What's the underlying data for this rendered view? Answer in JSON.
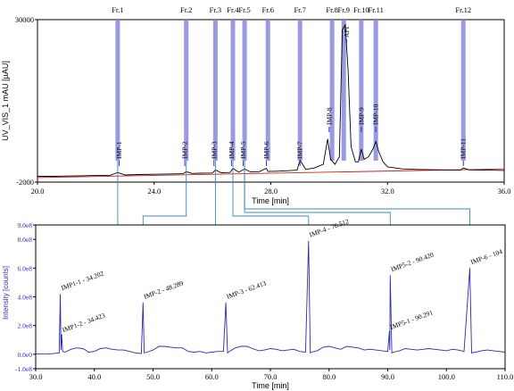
{
  "chart_data": [
    {
      "type": "line",
      "title": "",
      "xlabel": "Time [min]",
      "ylabel": "UV_VIS_1 mAU [µAU]",
      "xlim": [
        20.0,
        36.0
      ],
      "ylim": [
        -2000,
        30000
      ],
      "xticks": [
        "20.0",
        "24.0",
        "28.0",
        "32.0",
        "36.0"
      ],
      "yticks": [
        "30000",
        "-2000"
      ],
      "colors": {
        "trace": "#000000",
        "baseline": "#cc2222",
        "fraction": "#8888dd",
        "marker": "#2233cc"
      },
      "fractions": [
        {
          "label": "Fr.1",
          "x": 22.75
        },
        {
          "label": "Fr.2",
          "x": 25.1
        },
        {
          "label": "Fr.3",
          "x": 26.1
        },
        {
          "label": "Fr.4",
          "x": 26.7
        },
        {
          "label": "Fr.5",
          "x": 27.1
        },
        {
          "label": "Fr.6",
          "x": 27.9
        },
        {
          "label": "Fr.7",
          "x": 29.0
        },
        {
          "label": "Fr.8",
          "x": 30.1
        },
        {
          "label": "Fr.9",
          "x": 30.5
        },
        {
          "label": "Fr.10",
          "x": 31.1
        },
        {
          "label": "Fr.11",
          "x": 31.6
        },
        {
          "label": "Fr.12",
          "x": 34.6
        }
      ],
      "peak_labels": [
        {
          "label": "IMP-1",
          "x": 22.8
        },
        {
          "label": "IMP-2",
          "x": 25.05
        },
        {
          "label": "IMP-3",
          "x": 26.05
        },
        {
          "label": "IMP-4",
          "x": 26.65
        },
        {
          "label": "IMP-5",
          "x": 27.05
        },
        {
          "label": "IMP-6",
          "x": 27.85
        },
        {
          "label": "IMP-7",
          "x": 29.0
        },
        {
          "label": "IMP-8",
          "x": 30.0
        },
        {
          "label": "API",
          "x": 30.6
        },
        {
          "label": "IMP-9",
          "x": 31.1
        },
        {
          "label": "IMP-10",
          "x": 31.6
        },
        {
          "label": "IMP-11",
          "x": 34.6
        }
      ],
      "trace": {
        "x": [
          20.0,
          20.5,
          21.0,
          21.5,
          22.0,
          22.5,
          22.75,
          23.0,
          23.5,
          24.0,
          24.5,
          25.0,
          25.1,
          25.3,
          25.6,
          26.0,
          26.1,
          26.3,
          26.6,
          26.7,
          26.9,
          27.1,
          27.3,
          27.6,
          27.85,
          27.9,
          28.2,
          28.6,
          28.9,
          29.0,
          29.2,
          29.5,
          29.8,
          29.95,
          30.05,
          30.2,
          30.35,
          30.45,
          30.55,
          30.65,
          30.75,
          30.9,
          31.0,
          31.1,
          31.2,
          31.35,
          31.5,
          31.6,
          31.7,
          31.85,
          32.0,
          32.5,
          33.0,
          33.5,
          34.0,
          34.5,
          34.6,
          34.8,
          35.5,
          36.0
        ],
        "y": [
          -850,
          -850,
          -800,
          -750,
          -700,
          -650,
          -100,
          -600,
          -500,
          -450,
          -400,
          -350,
          50,
          -300,
          -250,
          -200,
          400,
          -150,
          -100,
          700,
          -50,
          600,
          0,
          50,
          700,
          100,
          150,
          250,
          350,
          2300,
          500,
          800,
          1500,
          6500,
          2500,
          1500,
          3000,
          28000,
          29000,
          20000,
          5000,
          2000,
          2000,
          4500,
          2500,
          3000,
          4500,
          6000,
          4000,
          2000,
          1000,
          600,
          500,
          450,
          400,
          350,
          800,
          400,
          350,
          300
        ]
      },
      "baseline_y": [
        -1100,
        600
      ]
    },
    {
      "type": "line",
      "title": "",
      "xlabel": "Time [min]",
      "ylabel": "Intensity [counts]",
      "xlim": [
        30.0,
        110.0
      ],
      "ylim": [
        -100000000.0,
        900000000.0
      ],
      "xticks": [
        "30.0",
        "40.0",
        "50.0",
        "60.0",
        "70.0",
        "80.0",
        "90.0",
        "100.0",
        "110.0"
      ],
      "yticks": [
        "9.0e8",
        "8.0e8",
        "6.0e8",
        "4.0e8",
        "2.0e8",
        "0.0e0",
        "-1.0e8"
      ],
      "colors": {
        "trace": "#2b2bb0",
        "arrow": "#3a88b8"
      },
      "peaks": [
        {
          "label": "IMP1-1 - 34.202",
          "x": 34.2,
          "y": 420000000.0
        },
        {
          "label": "IMP1-2 - 34.423",
          "x": 34.42,
          "y": 140000000.0
        },
        {
          "label": "IMP-2 - 48.289",
          "x": 48.29,
          "y": 360000000.0
        },
        {
          "label": "IMP-3 - 62.413",
          "x": 62.41,
          "y": 360000000.0
        },
        {
          "label": "IMP-4 - 76.512",
          "x": 76.51,
          "y": 790000000.0
        },
        {
          "label": "IMP5-2 - 90.420",
          "x": 90.42,
          "y": 550000000.0
        },
        {
          "label": "IMP5-1 - 90.291",
          "x": 90.29,
          "y": 160000000.0
        },
        {
          "label": "IMP-6 - 104",
          "x": 104.0,
          "y": 600000000.0
        }
      ],
      "trace": {
        "x": [
          30.0,
          32.0,
          33.0,
          34.0,
          34.2,
          34.3,
          34.42,
          34.6,
          35.0,
          36.0,
          37.0,
          38.0,
          38.5,
          39.0,
          40.0,
          41.0,
          42.0,
          43.0,
          44.0,
          45.0,
          46.0,
          47.0,
          48.0,
          48.29,
          48.5,
          49.0,
          50.0,
          51.0,
          52.0,
          53.0,
          54.0,
          55.0,
          56.0,
          57.0,
          58.0,
          59.0,
          60.0,
          61.0,
          62.0,
          62.41,
          62.7,
          63.0,
          64.0,
          65.0,
          66.0,
          67.0,
          68.0,
          69.0,
          70.0,
          71.0,
          72.0,
          73.0,
          74.0,
          75.0,
          76.0,
          76.51,
          76.8,
          77.0,
          78.0,
          79.0,
          80.0,
          81.0,
          82.0,
          83.0,
          84.0,
          85.0,
          86.0,
          87.0,
          88.0,
          89.0,
          90.0,
          90.29,
          90.35,
          90.42,
          90.7,
          91.0,
          92.0,
          93.0,
          94.0,
          95.0,
          96.0,
          97.0,
          98.0,
          99.0,
          100.0,
          101.0,
          102.0,
          103.0,
          104.0,
          104.3,
          105.0,
          106.0,
          107.0,
          108.0,
          109.0,
          110.0
        ],
        "y": [
          2000000.0,
          3000000.0,
          5000000.0,
          10000000.0,
          420000000.0,
          30000000.0,
          140000000.0,
          20000000.0,
          15000000.0,
          35000000.0,
          45000000.0,
          40000000.0,
          30000000.0,
          15000000.0,
          20000000.0,
          40000000.0,
          45000000.0,
          35000000.0,
          30000000.0,
          30000000.0,
          20000000.0,
          10000000.0,
          5000000.0,
          360000000.0,
          10000000.0,
          15000000.0,
          30000000.0,
          55000000.0,
          55000000.0,
          50000000.0,
          45000000.0,
          45000000.0,
          20000000.0,
          15000000.0,
          20000000.0,
          10000000.0,
          15000000.0,
          20000000.0,
          20000000.0,
          360000000.0,
          10000000.0,
          20000000.0,
          45000000.0,
          55000000.0,
          55000000.0,
          40000000.0,
          25000000.0,
          30000000.0,
          40000000.0,
          35000000.0,
          25000000.0,
          30000000.0,
          35000000.0,
          20000000.0,
          15000000.0,
          790000000.0,
          10000000.0,
          15000000.0,
          25000000.0,
          50000000.0,
          55000000.0,
          45000000.0,
          35000000.0,
          55000000.0,
          50000000.0,
          45000000.0,
          30000000.0,
          35000000.0,
          30000000.0,
          25000000.0,
          20000000.0,
          160000000.0,
          30000000.0,
          550000000.0,
          10000000.0,
          15000000.0,
          25000000.0,
          40000000.0,
          35000000.0,
          30000000.0,
          35000000.0,
          40000000.0,
          35000000.0,
          30000000.0,
          25000000.0,
          35000000.0,
          30000000.0,
          20000000.0,
          600000000.0,
          10000000.0,
          15000000.0,
          25000000.0,
          30000000.0,
          25000000.0,
          20000000.0,
          15000000.0
        ]
      }
    }
  ]
}
